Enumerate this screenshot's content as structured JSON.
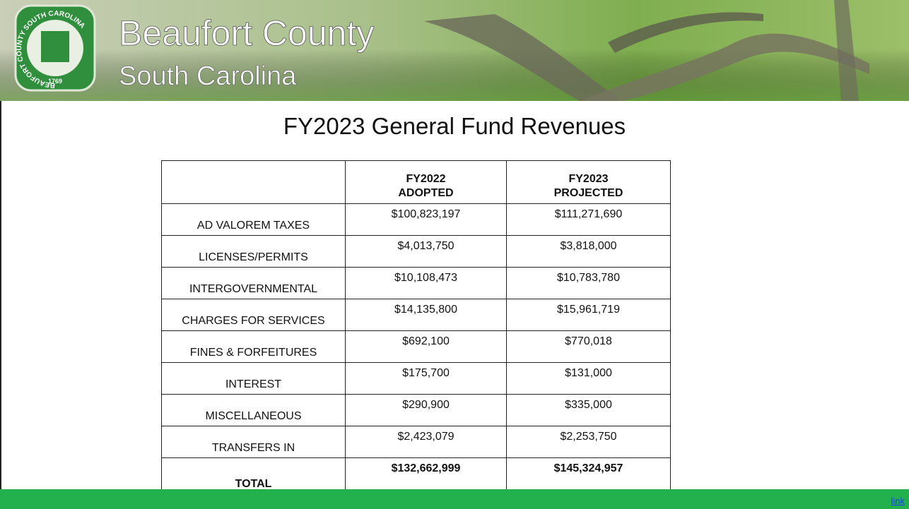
{
  "header": {
    "title": "Beaufort County",
    "subtitle": "South Carolina",
    "seal": {
      "ring": "BEAUFORT COUNTY SOUTH CAROLINA",
      "year": "1769"
    }
  },
  "slide": {
    "title": "FY2023 General Fund Revenues"
  },
  "table": {
    "columns": [
      [
        "FY2022",
        "ADOPTED"
      ],
      [
        "FY2023",
        "PROJECTED"
      ]
    ],
    "rows": [
      [
        "AD VALOREM TAXES",
        "$100,823,197",
        "$111,271,690"
      ],
      [
        "LICENSES/PERMITS",
        "$4,013,750",
        "$3,818,000"
      ],
      [
        "INTERGOVERNMENTAL",
        "$10,108,473",
        "$10,783,780"
      ],
      [
        "CHARGES FOR SERVICES",
        "$14,135,800",
        "$15,961,719"
      ],
      [
        "FINES & FORFEITURES",
        "$692,100",
        "$770,018"
      ],
      [
        "INTEREST",
        "$175,700",
        "$131,000"
      ],
      [
        "MISCELLANEOUS",
        "$290,900",
        "$335,000"
      ],
      [
        "TRANSFERS IN",
        "$2,423,079",
        "$2,253,750"
      ]
    ],
    "total": [
      "TOTAL",
      "$132,662,999",
      "$145,324,957"
    ]
  },
  "footer": {
    "link": "link"
  }
}
